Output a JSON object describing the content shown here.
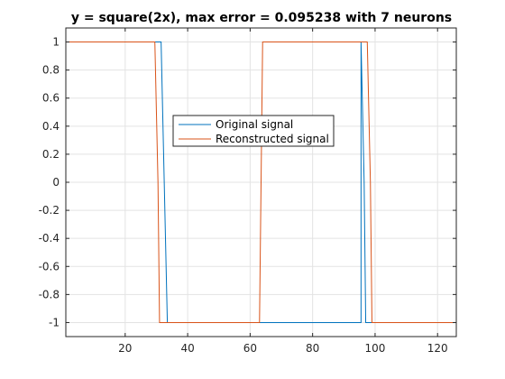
{
  "chart_data": {
    "type": "line",
    "title": "y = square(2x), max error = 0.095238 with 7 neurons",
    "xlabel": "",
    "ylabel": "",
    "xlim": [
      1,
      126
    ],
    "ylim": [
      -1.1,
      1.1
    ],
    "xticks": [
      20,
      40,
      60,
      80,
      100,
      120
    ],
    "yticks": [
      -1,
      -0.8,
      -0.6,
      -0.4,
      -0.2,
      0,
      0.2,
      0.4,
      0.6,
      0.8,
      1
    ],
    "ytick_labels": [
      "-1",
      "-0.8",
      "-0.6",
      "-0.4",
      "-0.2",
      "0",
      "0.2",
      "0.4",
      "0.6",
      "0.8",
      "1"
    ],
    "xtick_labels": [
      "20",
      "40",
      "60",
      "80",
      "100",
      "120"
    ],
    "grid": true,
    "legend": "center-left",
    "series": [
      {
        "name": "Original signal",
        "color": "#0072BD",
        "points": [
          [
            1,
            1
          ],
          [
            31.5,
            1
          ],
          [
            32.5,
            0
          ],
          [
            33.5,
            -1
          ],
          [
            95.5,
            -1
          ],
          [
            95.5,
            1
          ],
          [
            96.5,
            0
          ],
          [
            97,
            -1
          ],
          [
            126,
            -1
          ]
        ]
      },
      {
        "name": "Reconstructed signal",
        "color": "#D95319",
        "points": [
          [
            1,
            1
          ],
          [
            29.5,
            1
          ],
          [
            30.5,
            0
          ],
          [
            31,
            -1
          ],
          [
            63,
            -1
          ],
          [
            63.5,
            0
          ],
          [
            64,
            1
          ],
          [
            97.5,
            1
          ],
          [
            98.5,
            0
          ],
          [
            99,
            -1
          ],
          [
            126,
            -1
          ]
        ]
      }
    ]
  }
}
